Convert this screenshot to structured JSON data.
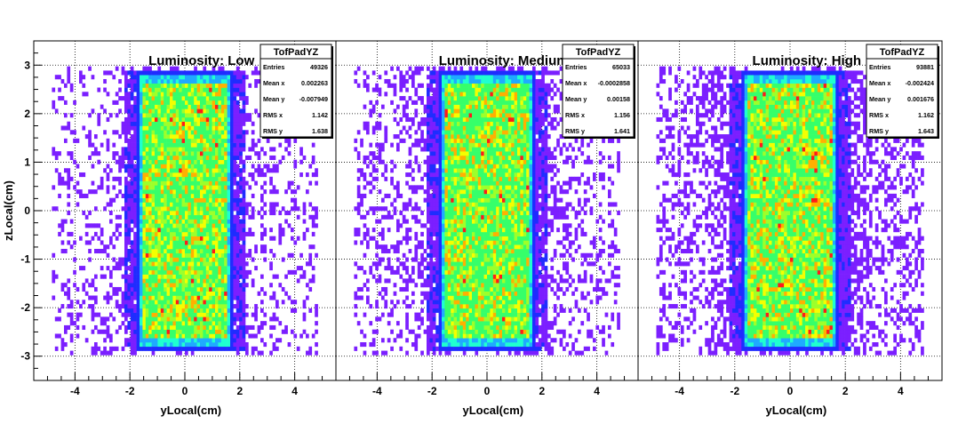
{
  "chart_data": [
    {
      "type": "heatmap",
      "title": "Luminosity: Low",
      "xlabel": "yLocal(cm)",
      "ylabel": "zLocal(cm)",
      "xlim": [
        -5.5,
        5.5
      ],
      "ylim": [
        -3.5,
        3.5
      ],
      "xticks": [
        -4,
        -2,
        0,
        2,
        4
      ],
      "yticks": [
        -3,
        -2,
        -1,
        0,
        1,
        2,
        3
      ],
      "grid": true,
      "core": {
        "y_range": [
          -1.8,
          1.8
        ],
        "z_range": [
          -2.9,
          2.9
        ]
      },
      "stats": {
        "name": "TofPadYZ",
        "rows": [
          {
            "label": "Entries",
            "value": "49326"
          },
          {
            "label": "Mean x",
            "value": "0.002263"
          },
          {
            "label": "Mean y",
            "value": "-0.007949"
          },
          {
            "label": "RMS x",
            "value": "1.142"
          },
          {
            "label": "RMS y",
            "value": "1.638"
          }
        ]
      },
      "density": {
        "noise": 0.3,
        "peak": 0.55
      }
    },
    {
      "type": "heatmap",
      "title": "Luminosity: Medium",
      "xlabel": "yLocal(cm)",
      "ylabel": "",
      "xlim": [
        -5.5,
        5.5
      ],
      "ylim": [
        -3.5,
        3.5
      ],
      "xticks": [
        -4,
        -2,
        0,
        2,
        4
      ],
      "yticks": [
        -3,
        -2,
        -1,
        0,
        1,
        2,
        3
      ],
      "grid": true,
      "core": {
        "y_range": [
          -1.8,
          1.8
        ],
        "z_range": [
          -2.9,
          2.9
        ]
      },
      "stats": {
        "name": "TofPadYZ",
        "rows": [
          {
            "label": "Entries",
            "value": "65033"
          },
          {
            "label": "Mean x",
            "value": "-0.0002858"
          },
          {
            "label": "Mean y",
            "value": "0.00158"
          },
          {
            "label": "RMS x",
            "value": "1.156"
          },
          {
            "label": "RMS y",
            "value": "1.641"
          }
        ]
      },
      "density": {
        "noise": 0.38,
        "peak": 0.6
      }
    },
    {
      "type": "heatmap",
      "title": "Luminosity: High",
      "xlabel": "yLocal(cm)",
      "ylabel": "",
      "xlim": [
        -5.5,
        5.5
      ],
      "ylim": [
        -3.5,
        3.5
      ],
      "xticks": [
        -4,
        -2,
        0,
        2,
        4
      ],
      "yticks": [
        -3,
        -2,
        -1,
        0,
        1,
        2,
        3
      ],
      "grid": true,
      "core": {
        "y_range": [
          -1.8,
          1.8
        ],
        "z_range": [
          -2.9,
          2.9
        ]
      },
      "stats": {
        "name": "TofPadYZ",
        "rows": [
          {
            "label": "Entries",
            "value": "93881"
          },
          {
            "label": "Mean x",
            "value": "-0.002424"
          },
          {
            "label": "Mean y",
            "value": "0.001676"
          },
          {
            "label": "RMS x",
            "value": "1.162"
          },
          {
            "label": "RMS y",
            "value": "1.643"
          }
        ]
      },
      "density": {
        "noise": 0.48,
        "peak": 0.68
      }
    }
  ],
  "colors": {
    "sparse": "#7b1fff",
    "edge": "#1f2cff",
    "ramp": [
      "#7b1fff",
      "#1f2cff",
      "#1faaff",
      "#1fffd0",
      "#36ff6a",
      "#9dff2a",
      "#f4ff00",
      "#ffb000",
      "#ff1a1a"
    ]
  }
}
